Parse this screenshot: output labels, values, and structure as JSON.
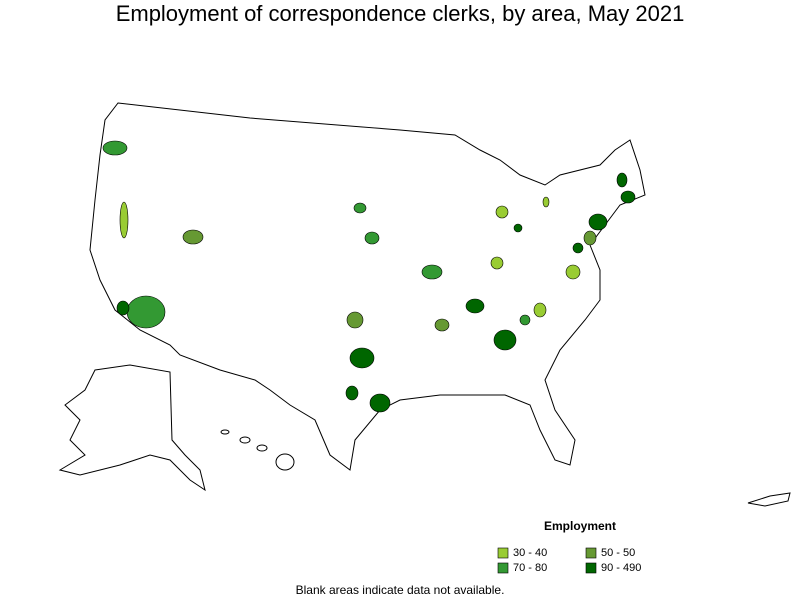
{
  "title": "Employment of correspondence clerks, by area, May 2021",
  "legend": {
    "title": "Employment",
    "items": [
      {
        "label": "30 - 40",
        "color": "#99cc33"
      },
      {
        "label": "70 - 80",
        "color": "#339933"
      },
      {
        "label": "50 - 50",
        "color": "#669933"
      },
      {
        "label": "90 - 490",
        "color": "#006600"
      }
    ]
  },
  "footnote": "Blank areas indicate data not available."
}
